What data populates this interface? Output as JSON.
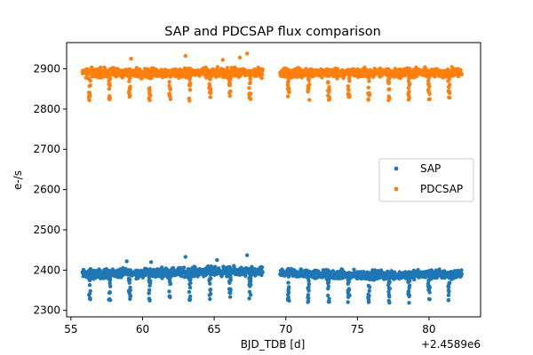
{
  "chart_data": {
    "type": "scatter",
    "title": "SAP and PDCSAP flux comparison",
    "xlabel": "BJD_TDB [d]",
    "ylabel": "e-/s",
    "x_offset_label": "+2.4589e6",
    "xlim": [
      54.7,
      83.6
    ],
    "ylim": [
      2284,
      2965
    ],
    "x_ticks": [
      55,
      60,
      65,
      70,
      75,
      80
    ],
    "y_ticks": [
      2300,
      2400,
      2500,
      2600,
      2700,
      2800,
      2900
    ],
    "grid": false,
    "legend_position": "center-right",
    "segments": [
      [
        55.8,
        68.4
      ],
      [
        69.6,
        82.3
      ]
    ],
    "dips_x": [
      56.3,
      57.7,
      59.1,
      60.5,
      61.9,
      63.3,
      64.7,
      66.1,
      67.5,
      70.2,
      71.6,
      73.0,
      74.4,
      75.8,
      77.2,
      78.6,
      80.0,
      81.4
    ],
    "series": [
      {
        "name": "SAP",
        "color": "#1f77b4",
        "trend": [
          [
            55.8,
            2390
          ],
          [
            60,
            2393
          ],
          [
            65,
            2397
          ],
          [
            68.4,
            2395
          ],
          [
            69.6,
            2393
          ],
          [
            72,
            2390
          ],
          [
            75,
            2387
          ],
          [
            80,
            2389
          ],
          [
            82.3,
            2391
          ]
        ],
        "band_halfwidth": 10,
        "dip_depth": 70,
        "outliers": [
          [
            63.0,
            2433
          ],
          [
            67.3,
            2437
          ],
          [
            65.2,
            2425
          ],
          [
            58.9,
            2422
          ],
          [
            60.6,
            2420
          ]
        ]
      },
      {
        "name": "PDCSAP",
        "color": "#ff7f0e",
        "trend": [
          [
            55.8,
            2890
          ],
          [
            68.4,
            2890
          ],
          [
            69.6,
            2890
          ],
          [
            82.3,
            2890
          ]
        ],
        "band_halfwidth": 10,
        "dip_depth": 70,
        "outliers": [
          [
            63.0,
            2932
          ],
          [
            67.3,
            2938
          ],
          [
            66.8,
            2928
          ],
          [
            59.2,
            2925
          ],
          [
            65.6,
            2922
          ]
        ]
      }
    ]
  }
}
